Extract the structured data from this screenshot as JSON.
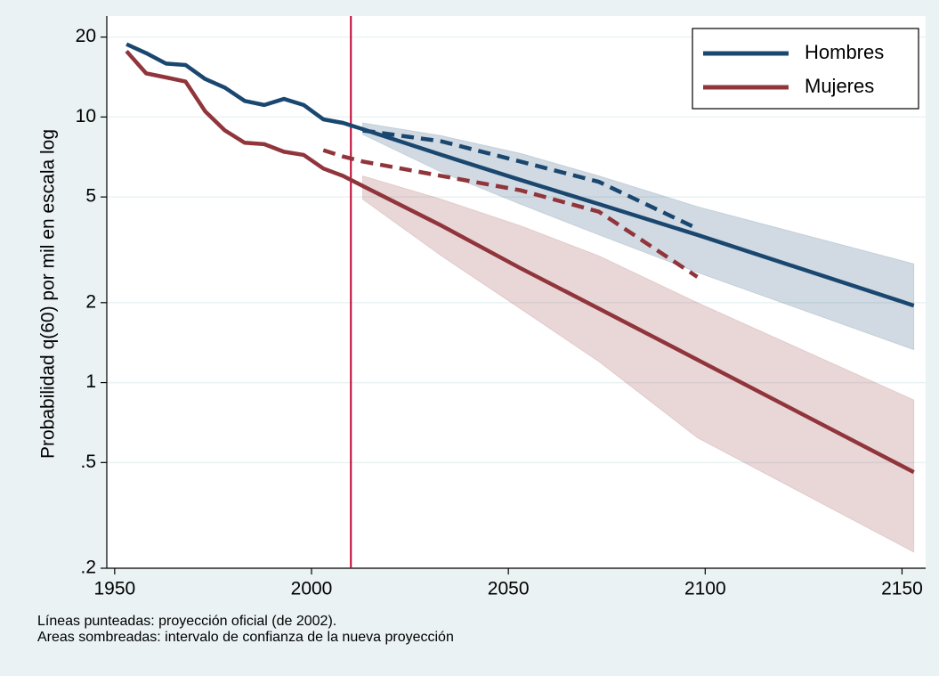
{
  "chart_data": {
    "type": "line",
    "y_label": "Probabilidad q(60) por mil en escala log",
    "notes": [
      "Líneas punteadas: proyección oficial (de 2002).",
      "Areas sombreadas: intervalo de confianza de la nueva proyección"
    ],
    "x": [
      1953,
      1958,
      1963,
      1968,
      1973,
      1978,
      1983,
      1988,
      1993,
      1998,
      2003,
      2008,
      2013,
      2033,
      2053,
      2073,
      2098,
      2153
    ],
    "series": [
      {
        "name": "Hombres",
        "color": "#1a476f",
        "values": [
          18.8,
          17.4,
          15.9,
          15.7,
          13.9,
          12.9,
          11.5,
          11.1,
          11.7,
          11.1,
          9.8,
          9.5,
          9.0,
          7.2,
          5.8,
          4.7,
          3.6,
          1.95
        ],
        "official": [
          null,
          null,
          null,
          null,
          null,
          null,
          null,
          null,
          null,
          null,
          null,
          null,
          8.9,
          8.1,
          6.8,
          5.7,
          3.8,
          null
        ],
        "lower": [
          null,
          null,
          null,
          null,
          null,
          null,
          null,
          null,
          null,
          null,
          null,
          null,
          8.6,
          6.2,
          4.7,
          3.6,
          2.6,
          1.33
        ],
        "upper": [
          null,
          null,
          null,
          null,
          null,
          null,
          null,
          null,
          null,
          null,
          null,
          null,
          9.5,
          8.5,
          7.3,
          6.0,
          4.6,
          2.8
        ]
      },
      {
        "name": "Mujeres",
        "color": "#90353b",
        "values": [
          17.7,
          14.6,
          14.1,
          13.6,
          10.5,
          8.9,
          8.0,
          7.9,
          7.4,
          7.2,
          6.4,
          6.0,
          5.5,
          3.9,
          2.7,
          1.9,
          1.22,
          0.46
        ],
        "official": [
          null,
          null,
          null,
          null,
          null,
          null,
          null,
          null,
          null,
          null,
          7.5,
          7.1,
          6.8,
          6.0,
          5.3,
          4.4,
          2.5,
          null
        ],
        "lower": [
          null,
          null,
          null,
          null,
          null,
          null,
          null,
          null,
          null,
          null,
          null,
          null,
          4.9,
          3.0,
          1.9,
          1.2,
          0.62,
          0.23
        ],
        "upper": [
          null,
          null,
          null,
          null,
          null,
          null,
          null,
          null,
          null,
          null,
          null,
          null,
          6.0,
          4.9,
          3.9,
          3.0,
          2.0,
          0.86
        ]
      }
    ],
    "vline": 2010,
    "vline_color": "#c10534",
    "xlim": [
      1948,
      2156
    ],
    "xticks": [
      1950,
      2000,
      2050,
      2100,
      2150
    ],
    "ylim": [
      0.2,
      24
    ],
    "log_y": true,
    "yticks": [
      {
        "value": 0.2,
        "label": ".2"
      },
      {
        "value": 0.5,
        "label": ".5"
      },
      1,
      2,
      5,
      10,
      20
    ],
    "grid": true,
    "legend": "top-right"
  }
}
